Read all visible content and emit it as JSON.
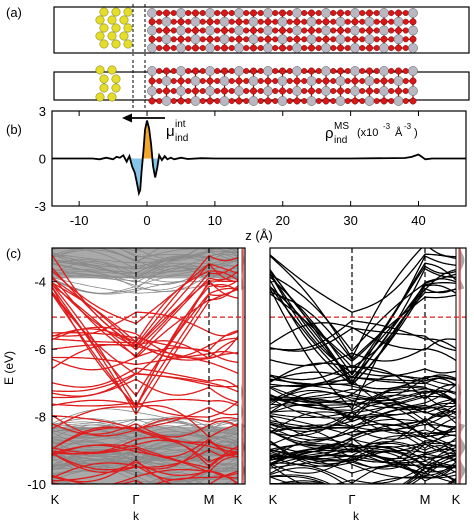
{
  "panels": {
    "a": {
      "label": "(a)"
    },
    "b": {
      "label": "(b)"
    },
    "c": {
      "label": "(c)"
    }
  },
  "atom_colors": {
    "substrate": "#e4dd2a",
    "metal": "#b8b8c4",
    "oxygen": "#d81818",
    "fill_positive": "#f2a62c",
    "fill_negative": "#86c4e8",
    "bands_red": "#e01c1c",
    "bands_gray": "#a9a9a9"
  },
  "chart_data": [
    {
      "type": "line",
      "panel": "b",
      "title": "",
      "xlabel": "z (Å)",
      "ylabel": "",
      "annotation_mu": "μ",
      "annotation_mu_sup": "int",
      "annotation_mu_sub": "ind",
      "annotation_rho": "ρ",
      "annotation_rho_sup": "MS",
      "annotation_rho_sub": "ind",
      "annotation_units": "(x10",
      "annotation_units_exp": "-3",
      "annotation_units_angstrom": "Å",
      "annotation_units_exp2": "-3",
      "annotation_units_close": ")",
      "xlim": [
        -14,
        47
      ],
      "ylim": [
        -3,
        3
      ],
      "xticks": [
        -10,
        0,
        10,
        20,
        30,
        40
      ],
      "yticks": [
        -3,
        0,
        3
      ],
      "x": [
        -14,
        -8,
        -7,
        -6,
        -5,
        -4.5,
        -4,
        -3.5,
        -3,
        -2.6,
        -2.2,
        -1.8,
        -1.5,
        -1.2,
        -1.0,
        -0.8,
        -0.5,
        -0.3,
        0,
        0.3,
        0.6,
        0.9,
        1.2,
        1.5,
        1.8,
        2.2,
        2.6,
        3,
        3.5,
        4,
        5,
        6,
        8,
        10,
        20,
        30,
        38,
        39,
        40,
        40.5,
        41,
        42,
        47
      ],
      "y": [
        0,
        0,
        -0.05,
        0.05,
        -0.05,
        0.1,
        0.05,
        0.2,
        -0.2,
        0.15,
        -0.5,
        -0.9,
        -1.5,
        -2.2,
        -2.0,
        -0.8,
        0.6,
        1.8,
        2.4,
        1.9,
        0.9,
        -0.5,
        -1.2,
        -0.6,
        0.2,
        -0.1,
        0.15,
        -0.05,
        0.05,
        -0.05,
        0.05,
        -0.03,
        0.02,
        0,
        0,
        0,
        0.03,
        0.1,
        0.25,
        0.1,
        -0.05,
        0,
        0
      ]
    },
    {
      "type": "line",
      "panel": "c",
      "title": "",
      "xlabel": "k",
      "ylabel": "E (eV)",
      "ylim": [
        -10,
        -3
      ],
      "yticks": [
        -10,
        -8,
        -6,
        -4
      ],
      "xtick_labels": [
        "K",
        "Γ",
        "M",
        "K"
      ],
      "fermi_level": -5.05
    }
  ]
}
